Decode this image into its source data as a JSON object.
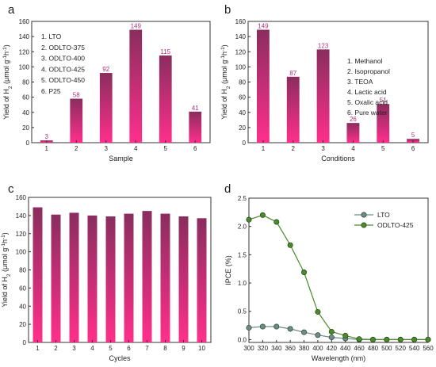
{
  "colors": {
    "bar_top": "#8a2d5e",
    "bar_bottom": "#ff2f8c",
    "bar_label": "#b0307a",
    "series_lto": "#6f8a8a",
    "series_odlto": "#4a8a2c"
  },
  "chart_data": [
    {
      "panel": "a",
      "type": "bar",
      "categories": [
        "1",
        "2",
        "3",
        "4",
        "5",
        "6"
      ],
      "values": [
        3,
        58,
        92,
        149,
        115,
        41
      ],
      "data_labels": [
        "3",
        "58",
        "92",
        "149",
        "115",
        "41"
      ],
      "xlabel": "Sample",
      "ylabel_parts": {
        "pre": "Yield of H",
        "sub": "2",
        "mid": " (μmol g",
        "sup1": "-1",
        "h": "h",
        "sup2": "-1",
        "end": ")"
      },
      "ylim": [
        0,
        160
      ],
      "yticks": [
        "0",
        "20",
        "40",
        "60",
        "80",
        "100",
        "120",
        "140",
        "160"
      ],
      "legend_position": "top-left",
      "legend_items": [
        "1. LTO",
        "2. ODLTO-375",
        "3. ODLTO-400",
        "4. ODLTO-425",
        "5. ODLTO-450",
        "6. P25"
      ],
      "grid": false
    },
    {
      "panel": "b",
      "type": "bar",
      "categories": [
        "1",
        "2",
        "3",
        "4",
        "5",
        "6"
      ],
      "values": [
        149,
        87,
        123,
        26,
        51,
        5
      ],
      "data_labels": [
        "149",
        "87",
        "123",
        "26",
        "51",
        "5"
      ],
      "xlabel": "Conditions",
      "ylabel_parts": {
        "pre": "Yield of H",
        "sub": "2",
        "mid": " (μmol g",
        "sup1": "-1",
        "h": "h",
        "sup2": "-1",
        "end": ")"
      },
      "ylim": [
        0,
        160
      ],
      "yticks": [
        "0",
        "20",
        "40",
        "60",
        "80",
        "100",
        "120",
        "140",
        "160"
      ],
      "legend_position": "top-right",
      "legend_items": [
        "1. Methanol",
        "2. Isopropanol",
        "3. TEOA",
        "4. Lactic acid",
        "5. Oxalic acid",
        "6. Pure water"
      ],
      "grid": false
    },
    {
      "panel": "c",
      "type": "bar",
      "categories": [
        "1",
        "2",
        "3",
        "4",
        "5",
        "6",
        "7",
        "8",
        "9",
        "10"
      ],
      "values": [
        149,
        141,
        143,
        140,
        139,
        142,
        145,
        142,
        139,
        137
      ],
      "xlabel": "Cycles",
      "ylabel_parts": {
        "pre": "Yield of H",
        "sub": "2",
        "mid": " (μmol g",
        "sup1": "-1",
        "h": "h",
        "sup2": "-1",
        "end": ")"
      },
      "ylim": [
        0,
        160
      ],
      "yticks": [
        "0",
        "20",
        "40",
        "60",
        "80",
        "100",
        "120",
        "140",
        "160"
      ],
      "grid": false
    },
    {
      "panel": "d",
      "type": "line",
      "xlabel": "Wavelength (nm)",
      "ylabel": "IPCE (%)",
      "xlim": [
        300,
        560
      ],
      "ylim": [
        -0.05,
        2.5
      ],
      "xticks": [
        "300",
        "320",
        "340",
        "360",
        "380",
        "400",
        "420",
        "440",
        "460",
        "480",
        "500",
        "520",
        "540",
        "560"
      ],
      "yticks": [
        "0.0",
        "0.5",
        "1.0",
        "1.5",
        "2.0",
        "2.5"
      ],
      "x": [
        300,
        320,
        340,
        360,
        380,
        400,
        420,
        440,
        460,
        480,
        500,
        520,
        540,
        560
      ],
      "series": [
        {
          "name": "LTO",
          "values": [
            0.21,
            0.23,
            0.23,
            0.19,
            0.13,
            0.08,
            0.04,
            0.02,
            0.0,
            0.0,
            0.0,
            0.0,
            0.0,
            0.0
          ]
        },
        {
          "name": "ODLTO-425",
          "values": [
            2.12,
            2.2,
            2.08,
            1.67,
            1.19,
            0.49,
            0.14,
            0.07,
            0.01,
            0.0,
            0.0,
            0.0,
            0.0,
            0.0
          ]
        }
      ],
      "legend_position": "top-right",
      "grid": false
    }
  ]
}
